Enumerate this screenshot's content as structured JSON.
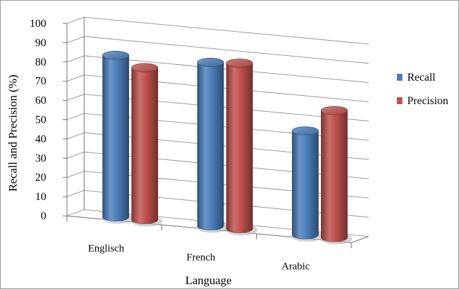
{
  "chart_data": {
    "type": "bar",
    "categories": [
      "Englisch",
      "French",
      "Arabic"
    ],
    "series": [
      {
        "name": "Recall",
        "values": [
          84,
          85,
          54
        ],
        "color": "#4a7ebb"
      },
      {
        "name": "Precision",
        "values": [
          79,
          86,
          66
        ],
        "color": "#c0504d"
      }
    ],
    "xlabel": "Language",
    "ylabel": "Recall and Precision (%)",
    "ylim": [
      0,
      100
    ],
    "yticks": [
      "0",
      "10",
      "20",
      "30",
      "40",
      "50",
      "60",
      "70",
      "80",
      "90",
      "100"
    ],
    "grid": true,
    "legend_position": "right",
    "style": "3d-cylinder"
  }
}
